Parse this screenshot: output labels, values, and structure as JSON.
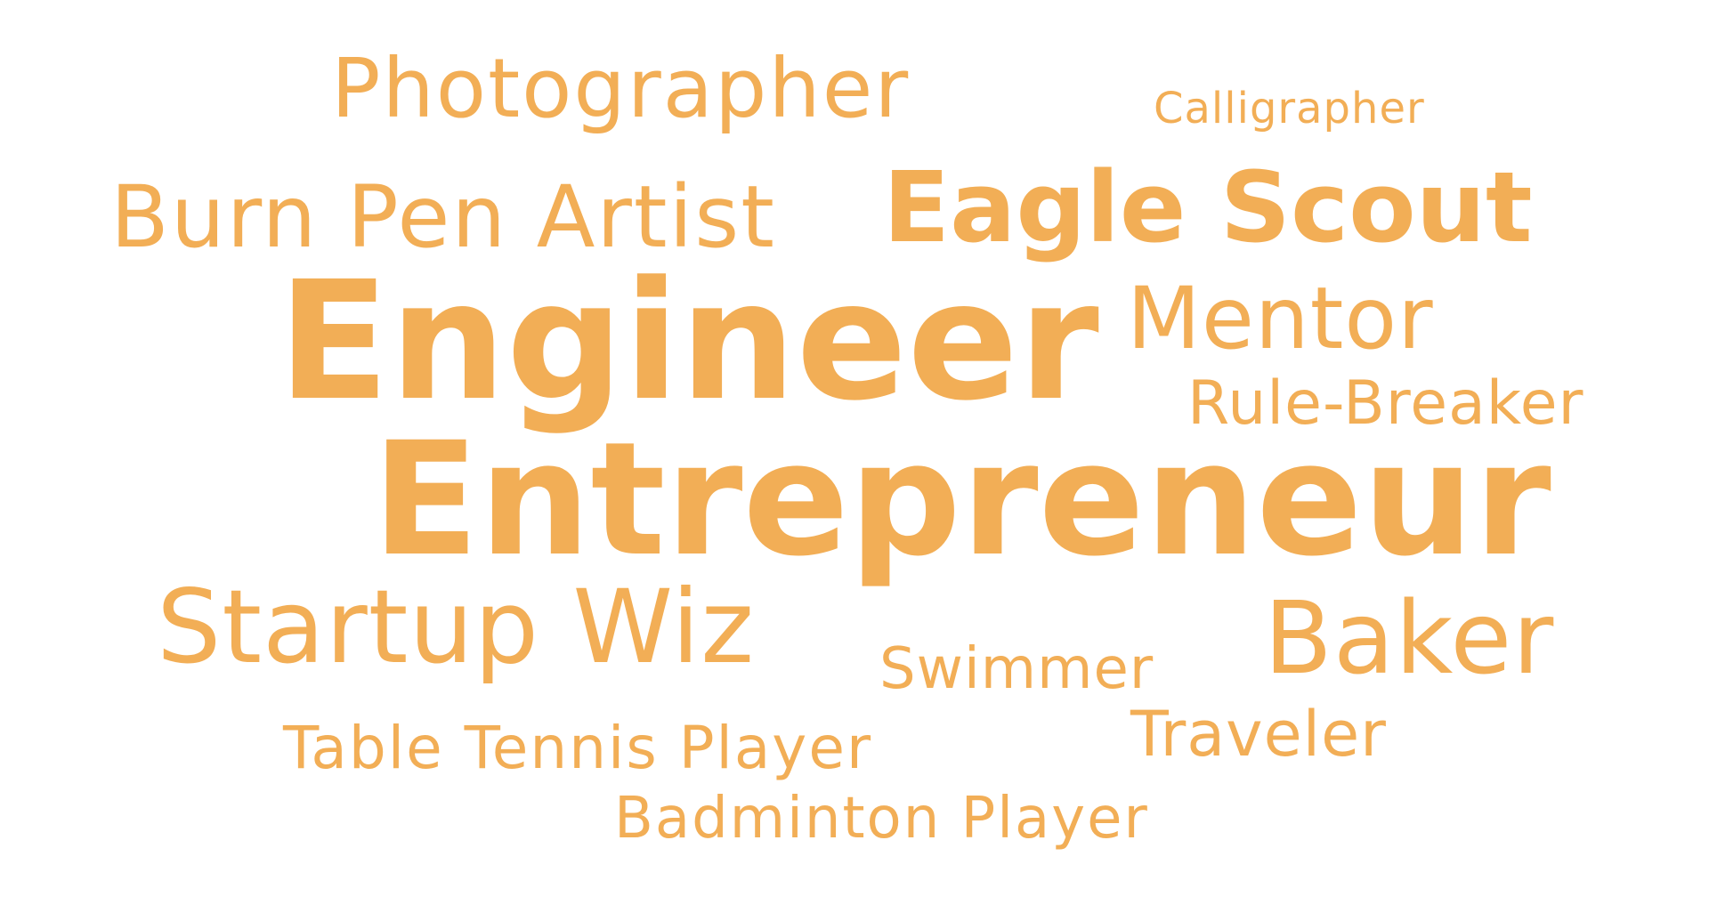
{
  "words": {
    "photographer": "Photographer",
    "calligrapher": "Calligrapher",
    "burn_pen_artist": "Burn Pen Artist",
    "eagle_scout": "Eagle Scout",
    "engineer": "Engineer",
    "mentor": "Mentor",
    "rule_breaker": "Rule-Breaker",
    "entrepreneur": "Entrepreneur",
    "startup_wiz": "Startup Wiz",
    "baker": "Baker",
    "swimmer": "Swimmer",
    "traveler": "Traveler",
    "table_tennis_player": "Table Tennis Player",
    "badminton_player": "Badminton Player"
  },
  "colors": {
    "word": "#f2ae56",
    "background": "#ffffff"
  }
}
